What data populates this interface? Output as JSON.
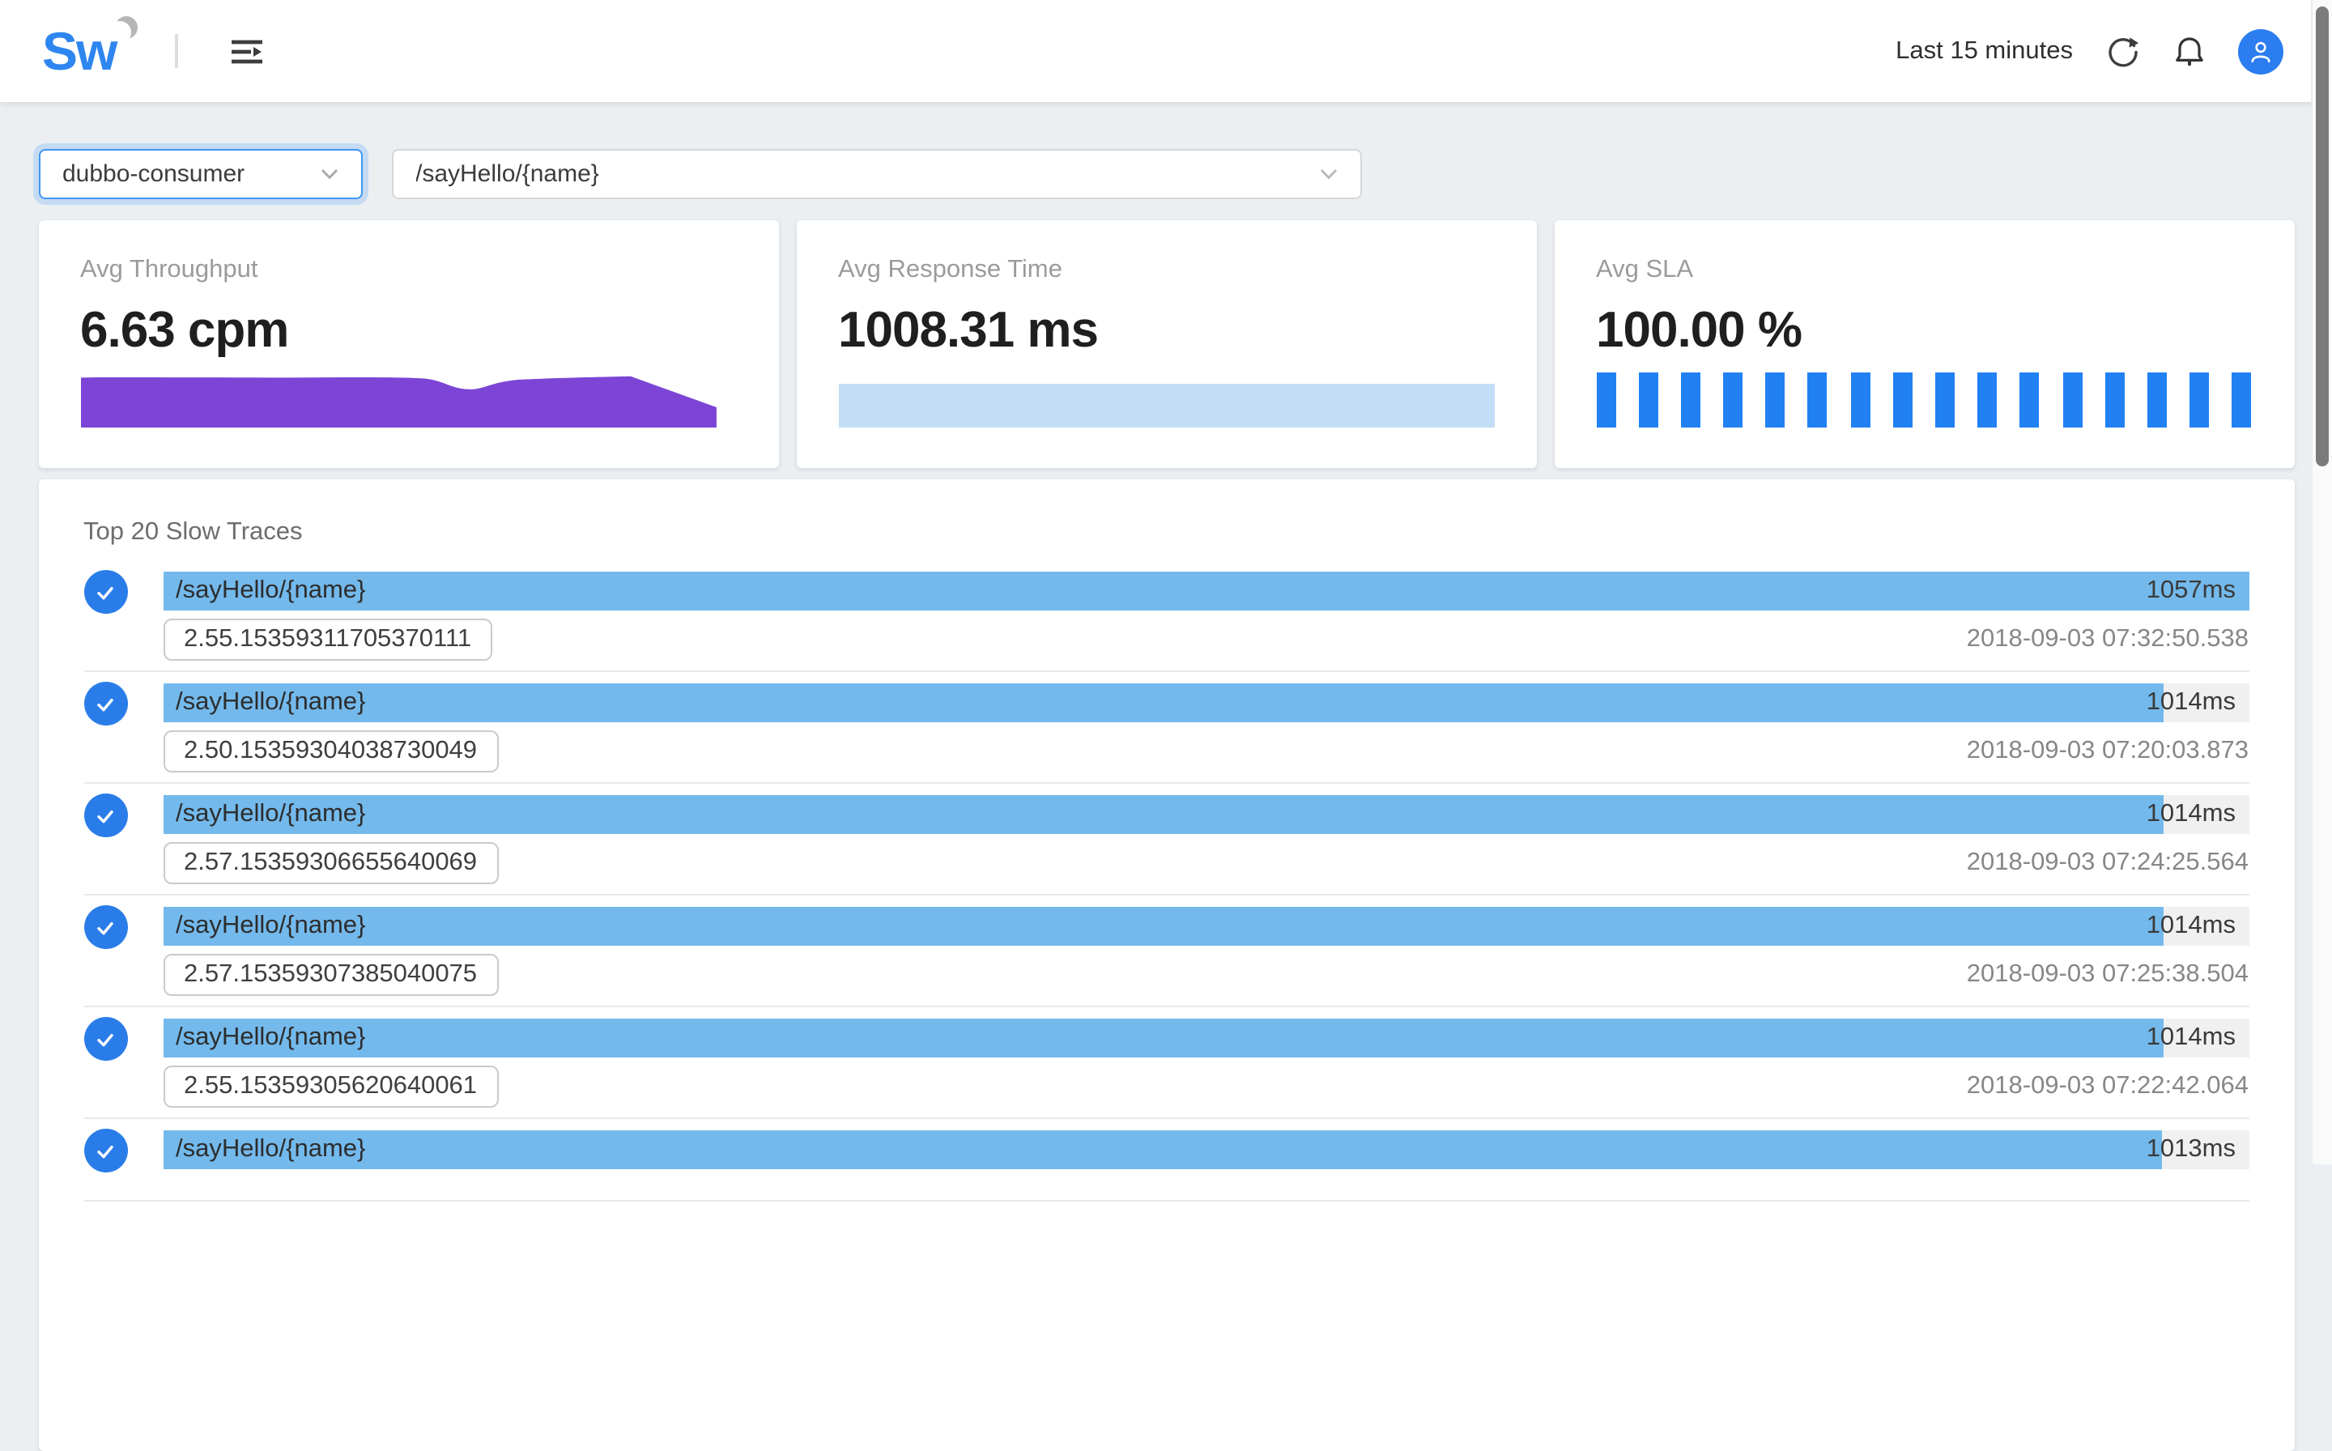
{
  "header": {
    "logo_text": "Sw",
    "time_range": "Last 15 minutes",
    "icons": [
      "menu-indent-icon",
      "refresh-icon",
      "bell-icon",
      "user-avatar-icon"
    ]
  },
  "filters": {
    "service": {
      "value": "dubbo-consumer"
    },
    "endpoint": {
      "value": "/sayHello/{name}"
    }
  },
  "metrics": [
    {
      "label": "Avg Throughput",
      "value": "6.63 cpm",
      "color": "#7d45d6"
    },
    {
      "label": "Avg Response Time",
      "value": "1008.31 ms",
      "color": "#c3ddf6"
    },
    {
      "label": "Avg SLA",
      "value": "100.00 %",
      "color": "#2181f3"
    }
  ],
  "chart_data": [
    {
      "type": "area",
      "title": "Avg Throughput",
      "unit": "cpm",
      "avg": 6.63,
      "values": [
        6.7,
        6.7,
        6.7,
        6.7,
        6.7,
        6.7,
        6.7,
        6.6,
        5.2,
        6.1,
        6.5,
        6.5,
        6.4,
        2.7
      ],
      "color": "#7d45d6",
      "axes": "hidden"
    },
    {
      "type": "area",
      "title": "Avg Response Time",
      "unit": "ms",
      "avg": 1008.31,
      "values": [
        1008,
        1008,
        1008,
        1008,
        1008,
        1008,
        1008,
        1008,
        1008,
        1008,
        1008,
        1008
      ],
      "color": "#c3ddf6",
      "axes": "hidden"
    },
    {
      "type": "bar",
      "title": "Avg SLA",
      "unit": "%",
      "avg": 100.0,
      "values": [
        100,
        100,
        100,
        100,
        100,
        100,
        100,
        100,
        100,
        100,
        100,
        100,
        100,
        100,
        100,
        100
      ],
      "color": "#2181f3",
      "axes": "hidden"
    }
  ],
  "traces": {
    "title": "Top 20 Slow Traces",
    "max_duration_ms": 1057,
    "items": [
      {
        "endpoint": "/sayHello/{name}",
        "duration": "1057ms",
        "duration_ms": 1057,
        "trace_id": "2.55.15359311705370111",
        "start_time": "2018-09-03 07:32:50.538"
      },
      {
        "endpoint": "/sayHello/{name}",
        "duration": "1014ms",
        "duration_ms": 1014,
        "trace_id": "2.50.15359304038730049",
        "start_time": "2018-09-03 07:20:03.873"
      },
      {
        "endpoint": "/sayHello/{name}",
        "duration": "1014ms",
        "duration_ms": 1014,
        "trace_id": "2.57.15359306655640069",
        "start_time": "2018-09-03 07:24:25.564"
      },
      {
        "endpoint": "/sayHello/{name}",
        "duration": "1014ms",
        "duration_ms": 1014,
        "trace_id": "2.57.15359307385040075",
        "start_time": "2018-09-03 07:25:38.504"
      },
      {
        "endpoint": "/sayHello/{name}",
        "duration": "1014ms",
        "duration_ms": 1014,
        "trace_id": "2.55.15359305620640061",
        "start_time": "2018-09-03 07:22:42.064"
      },
      {
        "endpoint": "/sayHello/{name}",
        "duration": "1013ms",
        "duration_ms": 1013,
        "trace_id": "",
        "start_time": ""
      }
    ]
  }
}
